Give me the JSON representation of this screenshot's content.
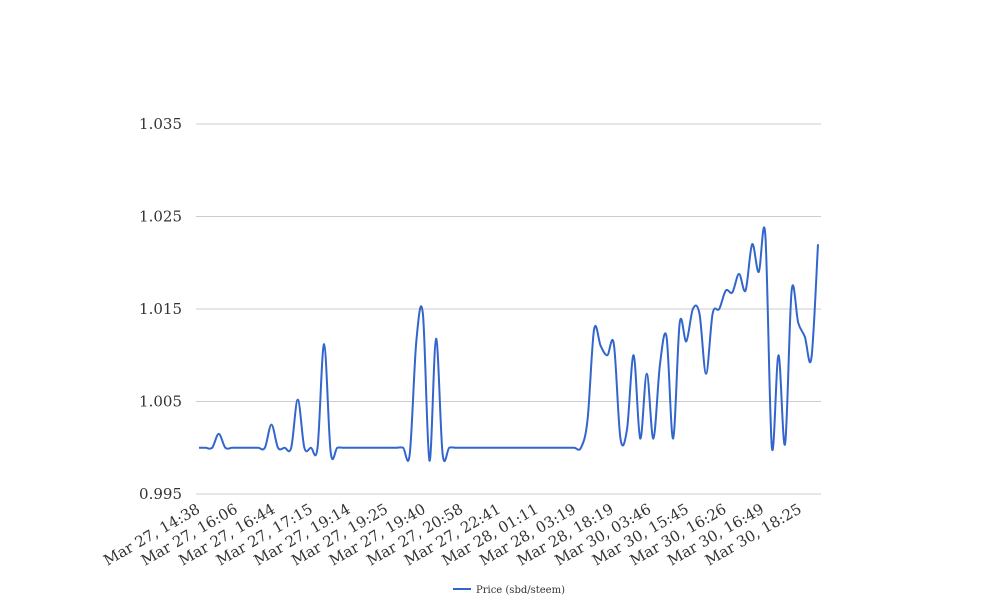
{
  "chart_data": {
    "type": "line",
    "title": "",
    "xlabel": "",
    "ylabel": "",
    "ylim": [
      0.995,
      1.035
    ],
    "y_ticks": [
      "0.995",
      "1.005",
      "1.015",
      "1.025",
      "1.035"
    ],
    "x_tick_labels": [
      "Mar 27, 14:38",
      "Mar 27, 16:06",
      "Mar 27, 16:44",
      "Mar 27, 17:15",
      "Mar 27, 19:14",
      "Mar 27, 19:25",
      "Mar 27, 19:40",
      "Mar 27, 20:58",
      "Mar 27, 22:41",
      "Mar 28, 01:11",
      "Mar 28, 03:19",
      "Mar 28, 18:19",
      "Mar 30, 03:46",
      "Mar 30, 15:45",
      "Mar 30, 16:26",
      "Mar 30, 16:49",
      "Mar 30, 18:25"
    ],
    "grid": true,
    "legend_position": "bottom-center",
    "series": [
      {
        "name": "Price (sbd/steem)",
        "color": "#3366cc",
        "values": [
          1.0,
          1.0,
          1.0,
          1.0015,
          1.0,
          1.0,
          1.0,
          1.0,
          1.0,
          1.0,
          1.0,
          1.0025,
          1.0,
          1.0,
          1.0,
          1.0052,
          1.0,
          1.0,
          1.0,
          1.0112,
          0.9995,
          1.0,
          1.0,
          1.0,
          1.0,
          1.0,
          1.0,
          1.0,
          1.0,
          1.0,
          1.0,
          1.0,
          0.9993,
          1.0115,
          1.0145,
          0.9986,
          1.0118,
          0.9993,
          1.0,
          1.0,
          1.0,
          1.0,
          1.0,
          1.0,
          1.0,
          1.0,
          1.0,
          1.0,
          1.0,
          1.0,
          1.0,
          1.0,
          1.0,
          1.0,
          1.0,
          1.0,
          1.0,
          1.0,
          1.0,
          1.003,
          1.0128,
          1.011,
          1.01,
          1.0112,
          1.001,
          1.002,
          1.01,
          1.001,
          1.008,
          1.001,
          1.009,
          1.012,
          1.001,
          1.0135,
          1.0115,
          1.015,
          1.0145,
          1.008,
          1.0145,
          1.015,
          1.017,
          1.0168,
          1.0188,
          1.017,
          1.022,
          1.019,
          1.023,
          1.0,
          1.01,
          1.0004,
          1.017,
          1.0135,
          1.012,
          1.0097,
          1.022
        ]
      }
    ]
  }
}
